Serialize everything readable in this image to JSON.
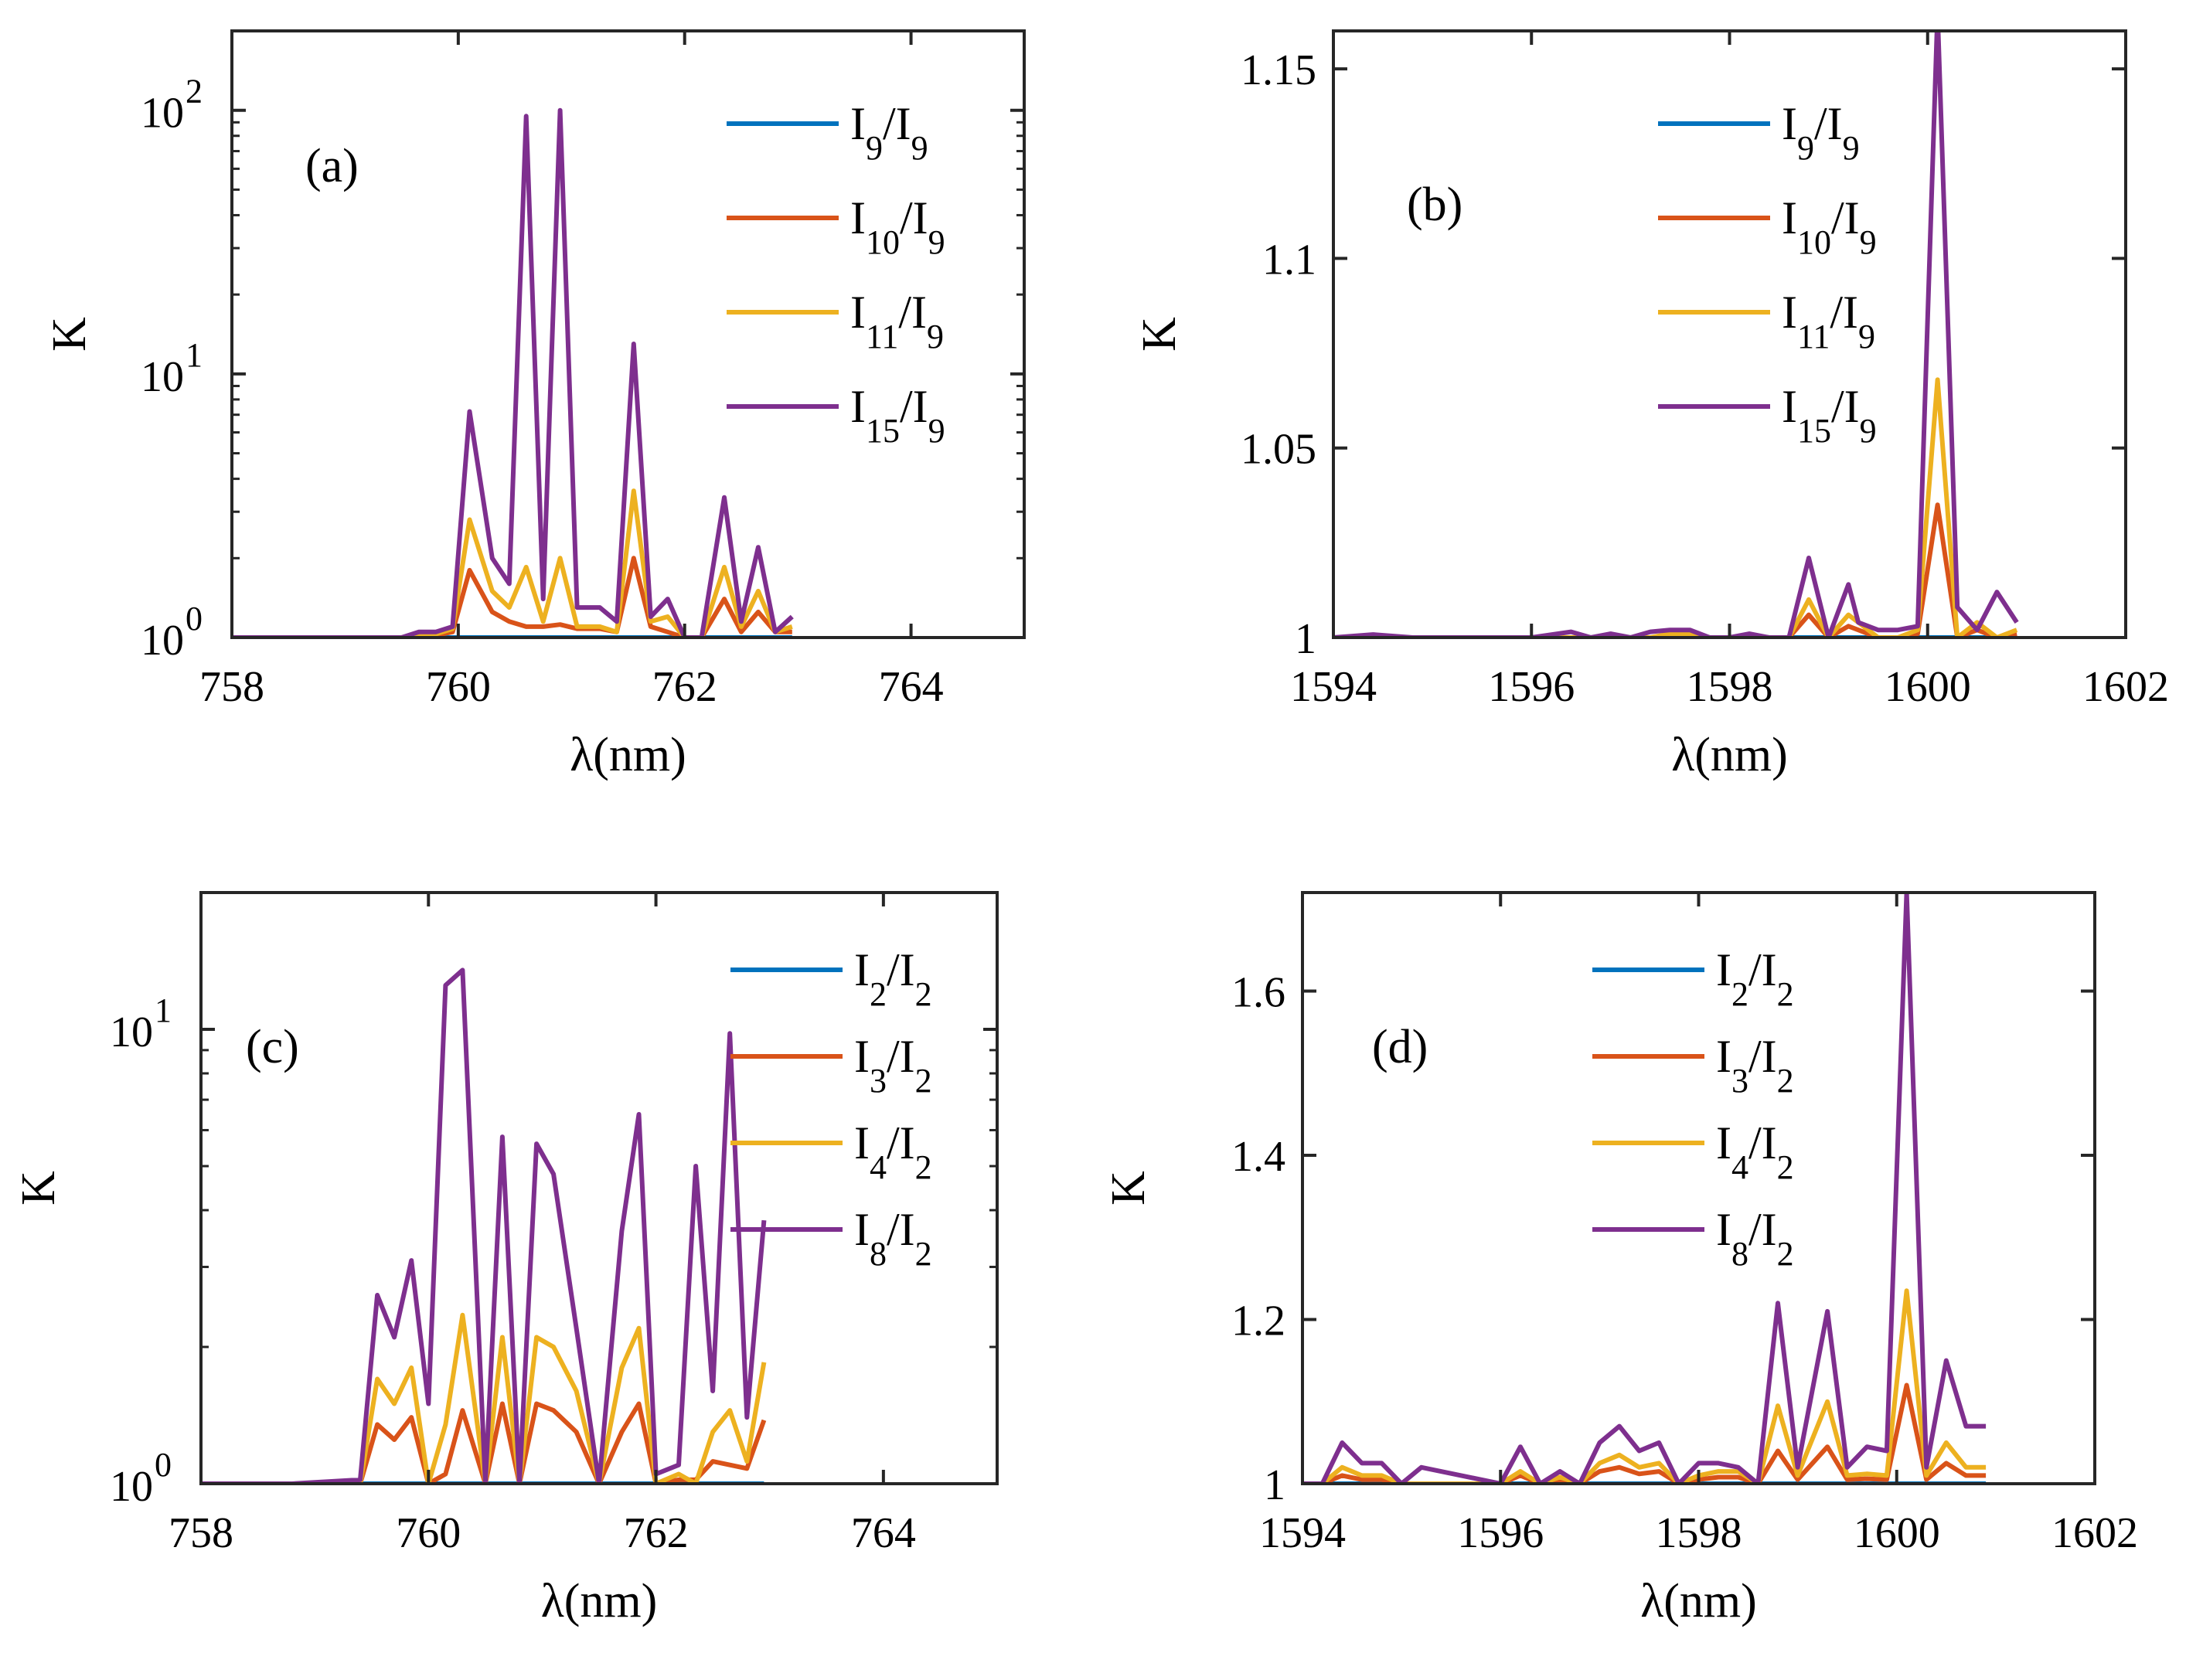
{
  "figure": {
    "description_units": "K vs wavelength"
  },
  "chart_data": [
    {
      "type": "line",
      "panel_label": "(a)",
      "xlabel": "λ(nm)",
      "ylabel": "K",
      "yscale": "log",
      "xlim": [
        758,
        765
      ],
      "ylim": [
        1,
        200
      ],
      "xticks": [
        758,
        760,
        762,
        764
      ],
      "yticks": [
        {
          "value": 1,
          "base": "10",
          "exp": "0"
        },
        {
          "value": 10,
          "base": "10",
          "exp": "1"
        },
        {
          "value": 100,
          "base": "10",
          "exp": "2"
        }
      ],
      "x": [
        758.0,
        758.4,
        758.8,
        759.2,
        759.5,
        759.65,
        759.8,
        759.95,
        760.1,
        760.3,
        760.45,
        760.6,
        760.75,
        760.9,
        761.05,
        761.25,
        761.4,
        761.55,
        761.7,
        761.85,
        762.0,
        762.15,
        762.35,
        762.5,
        762.65,
        762.8,
        762.95
      ],
      "legend": [
        {
          "label": "I9/I9",
          "main": "I",
          "sub1": "9",
          "mid": "/I",
          "sub2": "9",
          "color": "#0072BD"
        },
        {
          "label": "I10/I9",
          "main": "I",
          "sub1": "10",
          "mid": "/I",
          "sub2": "9",
          "color": "#D95319"
        },
        {
          "label": "I11/I9",
          "main": "I",
          "sub1": "11",
          "mid": "/I",
          "sub2": "9",
          "color": "#EDB120"
        },
        {
          "label": "I15/I9",
          "main": "I",
          "sub1": "15",
          "mid": "/I",
          "sub2": "9",
          "color": "#7E2F8E"
        }
      ],
      "series": [
        {
          "name": "I9/I9",
          "color": "#0072BD",
          "values": [
            1,
            1,
            1,
            1,
            1,
            1,
            1,
            1,
            1,
            1,
            1,
            1,
            1,
            1,
            1,
            1,
            1,
            1,
            1,
            1,
            1,
            1,
            1,
            1,
            1,
            1,
            1
          ]
        },
        {
          "name": "I10/I9",
          "color": "#D95319",
          "values": [
            1,
            1,
            1,
            1,
            1,
            1.02,
            1.02,
            1.05,
            1.8,
            1.25,
            1.15,
            1.1,
            1.1,
            1.12,
            1.08,
            1.08,
            1.05,
            2.0,
            1.1,
            1.05,
            1.0,
            1.0,
            1.4,
            1.05,
            1.25,
            1.05,
            1.05
          ]
        },
        {
          "name": "I11/I9",
          "color": "#EDB120",
          "values": [
            1,
            1,
            1,
            1,
            1,
            1.03,
            1.03,
            1.08,
            2.8,
            1.5,
            1.3,
            1.85,
            1.15,
            2.0,
            1.1,
            1.1,
            1.05,
            3.6,
            1.15,
            1.2,
            1.0,
            1.0,
            1.85,
            1.1,
            1.5,
            1.05,
            1.1
          ]
        },
        {
          "name": "I15/I9",
          "color": "#7E2F8E",
          "values": [
            1,
            1,
            1,
            1,
            1,
            1.05,
            1.05,
            1.1,
            7.2,
            2.0,
            1.6,
            95,
            1.4,
            100,
            1.3,
            1.3,
            1.15,
            13,
            1.2,
            1.4,
            1.0,
            1.0,
            3.4,
            1.15,
            2.2,
            1.05,
            1.2
          ]
        }
      ]
    },
    {
      "type": "line",
      "panel_label": "(b)",
      "xlabel": "λ(nm)",
      "ylabel": "K",
      "yscale": "linear",
      "xlim": [
        1594,
        1602
      ],
      "ylim": [
        1,
        1.16
      ],
      "xticks": [
        1594,
        1596,
        1598,
        1600,
        1602
      ],
      "yticks": [
        {
          "value": 1,
          "text": "1"
        },
        {
          "value": 1.05,
          "text": "1.05"
        },
        {
          "value": 1.1,
          "text": "1.1"
        },
        {
          "value": 1.15,
          "text": "1.15"
        }
      ],
      "x": [
        1594.0,
        1594.4,
        1594.8,
        1595.2,
        1595.6,
        1596.0,
        1596.4,
        1596.6,
        1596.8,
        1597.0,
        1597.2,
        1597.4,
        1597.6,
        1597.8,
        1598.0,
        1598.2,
        1598.4,
        1598.6,
        1598.8,
        1599.0,
        1599.2,
        1599.3,
        1599.5,
        1599.7,
        1599.9,
        1600.1,
        1600.3,
        1600.5,
        1600.7,
        1600.9
      ],
      "legend": [
        {
          "label": "I9/I9",
          "main": "I",
          "sub1": "9",
          "mid": "/I",
          "sub2": "9",
          "color": "#0072BD"
        },
        {
          "label": "I10/I9",
          "main": "I",
          "sub1": "10",
          "mid": "/I",
          "sub2": "9",
          "color": "#D95319"
        },
        {
          "label": "I11/I9",
          "main": "I",
          "sub1": "11",
          "mid": "/I",
          "sub2": "9",
          "color": "#EDB120"
        },
        {
          "label": "I15/I9",
          "main": "I",
          "sub1": "15",
          "mid": "/I",
          "sub2": "9",
          "color": "#7E2F8E"
        }
      ],
      "series": [
        {
          "name": "I9/I9",
          "color": "#0072BD",
          "values": [
            1,
            1,
            1,
            1,
            1,
            1,
            1,
            1,
            1,
            1,
            1,
            1,
            1,
            1,
            1,
            1,
            1,
            1,
            1,
            1,
            1,
            1,
            1,
            1,
            1,
            1,
            1,
            1,
            1,
            1
          ]
        },
        {
          "name": "I10/I9",
          "color": "#D95319",
          "values": [
            1,
            1,
            1,
            1,
            1,
            1,
            1,
            1,
            1,
            1,
            1,
            1,
            1,
            1,
            1,
            1,
            1,
            1,
            1.006,
            1,
            1.003,
            1.002,
            1,
            1,
            1.001,
            1.035,
            1,
            1.002,
            1,
            1.001
          ]
        },
        {
          "name": "I11/I9",
          "color": "#EDB120",
          "values": [
            1,
            1,
            1,
            1,
            1,
            1,
            1,
            1,
            1,
            1,
            1,
            1.001,
            1.001,
            1,
            1,
            1,
            1,
            1,
            1.01,
            1,
            1.006,
            1.004,
            1,
            1,
            1.002,
            1.068,
            1,
            1.004,
            1,
            1.002
          ]
        },
        {
          "name": "I15/I9",
          "color": "#7E2F8E",
          "values": [
            1,
            1.0008,
            1,
            1,
            1,
            1,
            1.0015,
            1,
            1.001,
            1,
            1.0015,
            1.002,
            1.002,
            1,
            1,
            1.001,
            1,
            1,
            1.021,
            1,
            1.014,
            1.004,
            1.002,
            1.002,
            1.003,
            1.165,
            1.008,
            1.002,
            1.012,
            1.004
          ]
        }
      ]
    },
    {
      "type": "line",
      "panel_label": "(c)",
      "xlabel": "λ(nm)",
      "ylabel": "K",
      "yscale": "log",
      "xlim": [
        758,
        765
      ],
      "ylim": [
        1,
        20
      ],
      "xticks": [
        758,
        760,
        762,
        764
      ],
      "yticks": [
        {
          "value": 1,
          "base": "10",
          "exp": "0"
        },
        {
          "value": 10,
          "base": "10",
          "exp": "1"
        }
      ],
      "x": [
        758.0,
        758.8,
        759.4,
        759.55,
        759.7,
        759.85,
        760.0,
        760.15,
        760.3,
        760.5,
        760.65,
        760.8,
        760.95,
        761.1,
        761.3,
        761.5,
        761.7,
        761.85,
        762.0,
        762.2,
        762.35,
        762.5,
        762.65,
        762.8,
        762.95
      ],
      "legend": [
        {
          "label": "I2/I2",
          "main": "I",
          "sub1": "2",
          "mid": "/I",
          "sub2": "2",
          "color": "#0072BD"
        },
        {
          "label": "I3/I2",
          "main": "I",
          "sub1": "3",
          "mid": "/I",
          "sub2": "2",
          "color": "#D95319"
        },
        {
          "label": "I4/I2",
          "main": "I",
          "sub1": "4",
          "mid": "/I",
          "sub2": "2",
          "color": "#EDB120"
        },
        {
          "label": "I8/I2",
          "main": "I",
          "sub1": "8",
          "mid": "/I",
          "sub2": "2",
          "color": "#7E2F8E"
        }
      ],
      "series": [
        {
          "name": "I2/I2",
          "color": "#0072BD",
          "values": [
            1,
            1,
            1,
            1,
            1,
            1,
            1,
            1,
            1,
            1,
            1,
            1,
            1,
            1,
            1,
            1,
            1,
            1,
            1,
            1,
            1,
            1,
            1,
            1,
            1
          ]
        },
        {
          "name": "I3/I2",
          "color": "#D95319",
          "values": [
            1,
            1,
            1,
            1.35,
            1.25,
            1.4,
            1.0,
            1.05,
            1.45,
            1.0,
            1.5,
            1.0,
            1.5,
            1.45,
            1.3,
            1.0,
            1.3,
            1.5,
            1.0,
            1.02,
            1.02,
            1.12,
            1.1,
            1.08,
            1.38
          ]
        },
        {
          "name": "I4/I2",
          "color": "#EDB120",
          "values": [
            1,
            1,
            1,
            1.7,
            1.5,
            1.8,
            1.0,
            1.35,
            2.35,
            1.0,
            2.1,
            1.0,
            2.1,
            2.0,
            1.6,
            1.0,
            1.8,
            2.2,
            1.0,
            1.05,
            1.0,
            1.3,
            1.45,
            1.12,
            1.85
          ]
        },
        {
          "name": "I8/I2",
          "color": "#7E2F8E",
          "values": [
            1,
            1,
            1.02,
            2.6,
            2.1,
            3.1,
            1.5,
            12.5,
            13.5,
            1.0,
            5.8,
            1.0,
            5.6,
            4.8,
            2.2,
            1.0,
            3.6,
            6.5,
            1.05,
            1.1,
            5.0,
            1.6,
            9.8,
            1.4,
            3.8
          ]
        }
      ]
    },
    {
      "type": "line",
      "panel_label": "(d)",
      "xlabel": "λ(nm)",
      "ylabel": "K",
      "yscale": "linear",
      "xlim": [
        1594,
        1602
      ],
      "ylim": [
        1,
        1.72
      ],
      "xticks": [
        1594,
        1596,
        1598,
        1600,
        1602
      ],
      "yticks": [
        {
          "value": 1,
          "text": "1"
        },
        {
          "value": 1.2,
          "text": "1.2"
        },
        {
          "value": 1.4,
          "text": "1.4"
        },
        {
          "value": 1.6,
          "text": "1.6"
        }
      ],
      "x": [
        1594.0,
        1594.2,
        1594.4,
        1594.6,
        1594.8,
        1595.0,
        1595.2,
        1596.0,
        1596.2,
        1596.4,
        1596.6,
        1596.8,
        1597.0,
        1597.2,
        1597.4,
        1597.6,
        1597.8,
        1598.0,
        1598.2,
        1598.4,
        1598.6,
        1598.8,
        1599.0,
        1599.3,
        1599.5,
        1599.7,
        1599.9,
        1600.1,
        1600.3,
        1600.5,
        1600.7,
        1600.9
      ],
      "legend": [
        {
          "label": "I2/I2",
          "main": "I",
          "sub1": "2",
          "mid": "/I",
          "sub2": "2",
          "color": "#0072BD"
        },
        {
          "label": "I3/I2",
          "main": "I",
          "sub1": "3",
          "mid": "/I",
          "sub2": "2",
          "color": "#D95319"
        },
        {
          "label": "I4/I2",
          "main": "I",
          "sub1": "4",
          "mid": "/I",
          "sub2": "2",
          "color": "#EDB120"
        },
        {
          "label": "I8/I2",
          "main": "I",
          "sub1": "8",
          "mid": "/I",
          "sub2": "2",
          "color": "#7E2F8E"
        }
      ],
      "series": [
        {
          "name": "I2/I2",
          "color": "#0072BD",
          "values": [
            1,
            1,
            1,
            1,
            1,
            1,
            1,
            1,
            1,
            1,
            1,
            1,
            1,
            1,
            1,
            1,
            1,
            1,
            1,
            1,
            1,
            1,
            1,
            1,
            1,
            1,
            1,
            1,
            1,
            1,
            1,
            1
          ]
        },
        {
          "name": "I3/I2",
          "color": "#D95319",
          "values": [
            1,
            1,
            1.01,
            1.005,
            1.005,
            1,
            1,
            1,
            1.01,
            1,
            1.005,
            1,
            1.015,
            1.02,
            1.012,
            1.015,
            1,
            1.005,
            1.008,
            1.008,
            1,
            1.04,
            1.005,
            1.045,
            1.005,
            1.006,
            1.005,
            1.12,
            1.005,
            1.025,
            1.01,
            1.01
          ]
        },
        {
          "name": "I4/I2",
          "color": "#EDB120",
          "values": [
            1,
            1,
            1.02,
            1.01,
            1.01,
            1,
            1,
            1,
            1.015,
            1,
            1.008,
            1,
            1.025,
            1.035,
            1.02,
            1.025,
            1,
            1.01,
            1.015,
            1.015,
            1,
            1.095,
            1.01,
            1.1,
            1.01,
            1.012,
            1.01,
            1.235,
            1.01,
            1.05,
            1.02,
            1.02
          ]
        },
        {
          "name": "I8/I2",
          "color": "#7E2F8E",
          "values": [
            1,
            1,
            1.05,
            1.025,
            1.025,
            1,
            1.02,
            1,
            1.045,
            1,
            1.015,
            1,
            1.05,
            1.07,
            1.04,
            1.05,
            1,
            1.025,
            1.025,
            1.02,
            1,
            1.22,
            1.02,
            1.21,
            1.02,
            1.045,
            1.04,
            1.72,
            1.02,
            1.15,
            1.07,
            1.07
          ]
        }
      ]
    }
  ]
}
